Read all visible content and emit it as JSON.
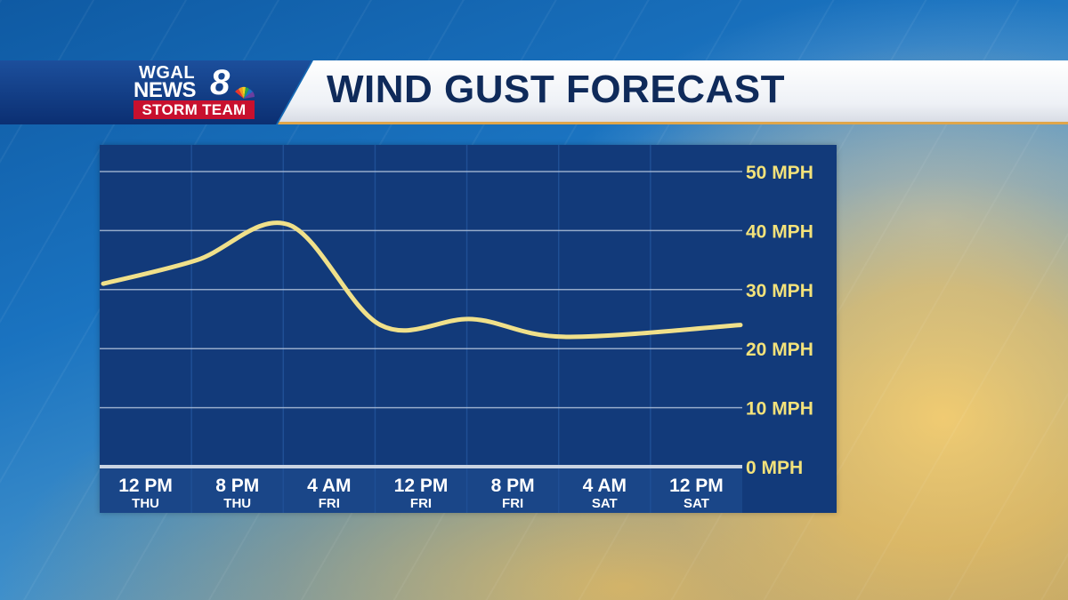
{
  "header": {
    "logo_wgal": "WGAL",
    "logo_news": "NEWS",
    "logo_number": "8",
    "logo_storm_team": "STORM TEAM",
    "title": "WIND GUST FORECAST"
  },
  "colors": {
    "line": "#f0e08a",
    "y_labels": "#f3e27a",
    "panel": "#123a7a",
    "banner_blue": "#0b2f72",
    "storm_team_red": "#c8102e",
    "title_text": "#0f2a5a"
  },
  "chart_data": {
    "type": "line",
    "title": "WIND GUST FORECAST",
    "xlabel": "",
    "ylabel": "",
    "ylim": [
      0,
      50
    ],
    "yticks": [
      0,
      10,
      20,
      30,
      40,
      50
    ],
    "ytick_labels": [
      "0 MPH",
      "10 MPH",
      "20 MPH",
      "30 MPH",
      "40 MPH",
      "50 MPH"
    ],
    "categories": [
      {
        "time": "12 PM",
        "day": "THU"
      },
      {
        "time": "8 PM",
        "day": "THU"
      },
      {
        "time": "4 AM",
        "day": "FRI"
      },
      {
        "time": "12 PM",
        "day": "FRI"
      },
      {
        "time": "8 PM",
        "day": "FRI"
      },
      {
        "time": "4 AM",
        "day": "SAT"
      },
      {
        "time": "12 PM",
        "day": "SAT"
      }
    ],
    "grid": true,
    "series": [
      {
        "values": [
          31,
          35,
          41,
          24,
          25,
          22,
          24
        ]
      }
    ]
  }
}
